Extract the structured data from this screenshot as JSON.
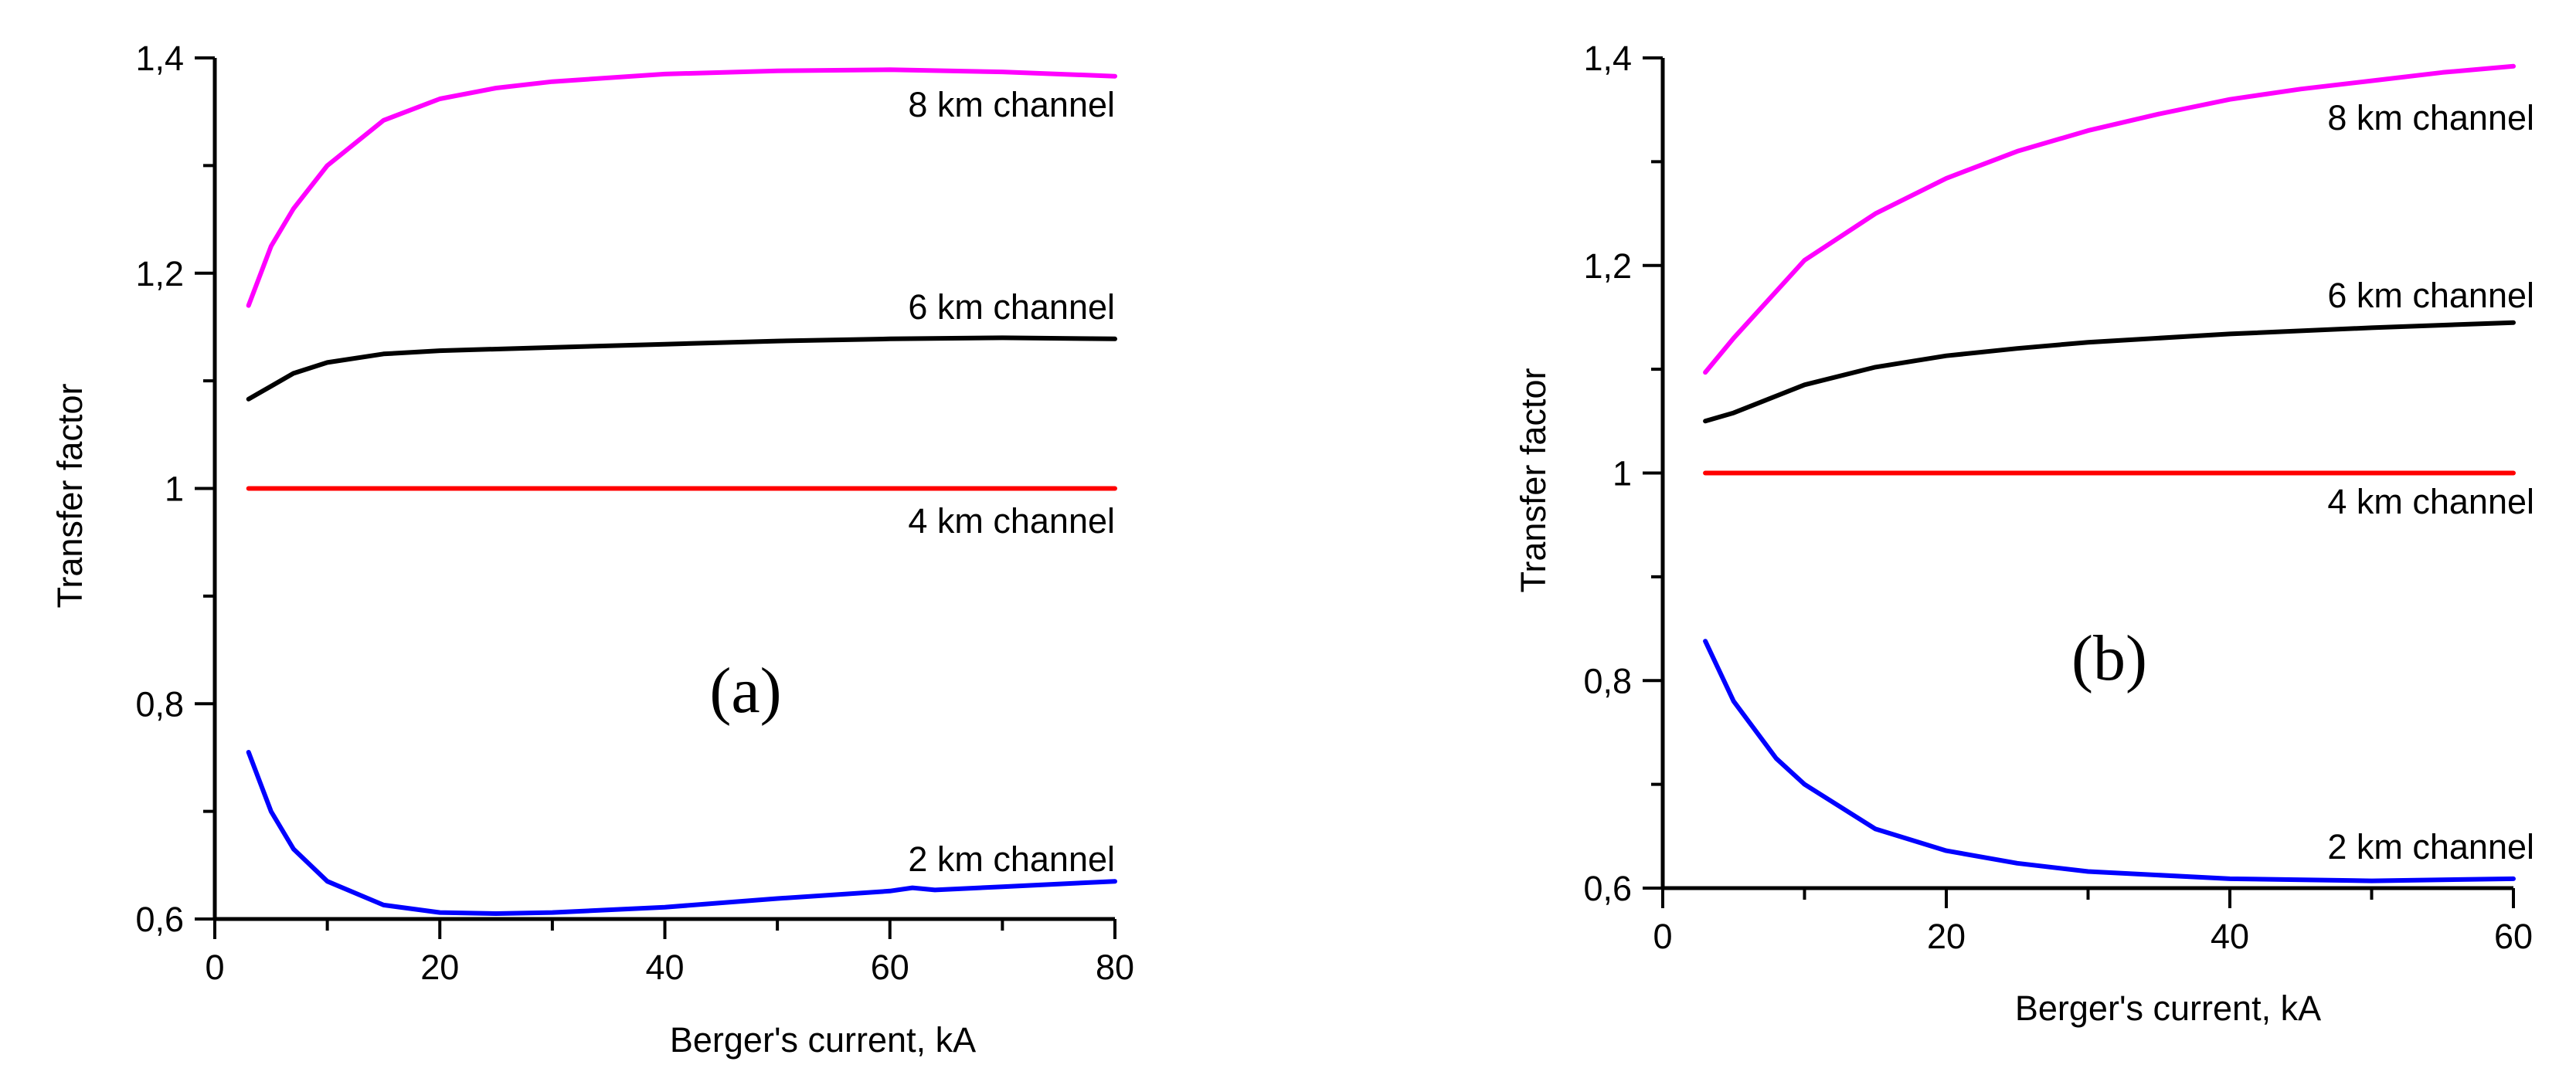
{
  "chart_data": [
    {
      "type": "line",
      "panel_label": "(a)",
      "xlabel": "Berger's current, kA",
      "ylabel": "Transfer factor",
      "xlim": [
        0,
        80
      ],
      "ylim": [
        0.6,
        1.4
      ],
      "x_ticks": [
        0,
        20,
        40,
        60,
        80
      ],
      "x_tick_labels": [
        "0",
        "20",
        "40",
        "60",
        "80"
      ],
      "y_ticks": [
        0.6,
        0.8,
        1.0,
        1.2,
        1.4
      ],
      "y_tick_labels": [
        "0,6",
        "0,8",
        "1",
        "1,2",
        "1,4"
      ],
      "series": [
        {
          "name": "8 km channel",
          "color": "#ff00ff",
          "x": [
            3,
            5,
            7,
            10,
            15,
            20,
            25,
            30,
            40,
            50,
            60,
            70,
            80
          ],
          "values": [
            1.17,
            1.225,
            1.26,
            1.3,
            1.342,
            1.362,
            1.372,
            1.378,
            1.385,
            1.388,
            1.389,
            1.387,
            1.383
          ]
        },
        {
          "name": "6 km channel",
          "color": "#000000",
          "x": [
            3,
            5,
            7,
            10,
            15,
            20,
            30,
            40,
            50,
            60,
            70,
            80
          ],
          "values": [
            1.083,
            1.095,
            1.107,
            1.117,
            1.125,
            1.128,
            1.131,
            1.134,
            1.137,
            1.139,
            1.14,
            1.139
          ]
        },
        {
          "name": "4 km channel",
          "color": "#ff0000",
          "x": [
            3,
            80
          ],
          "values": [
            1.0,
            1.0
          ]
        },
        {
          "name": "2 km channel",
          "color": "#0000ff",
          "x": [
            3,
            5,
            7,
            10,
            15,
            20,
            25,
            30,
            40,
            50,
            60,
            62,
            64,
            70,
            80
          ],
          "values": [
            0.755,
            0.7,
            0.665,
            0.635,
            0.613,
            0.606,
            0.605,
            0.606,
            0.611,
            0.619,
            0.626,
            0.629,
            0.627,
            0.63,
            0.635
          ]
        }
      ]
    },
    {
      "type": "line",
      "panel_label": "(b)",
      "xlabel": "Berger's current, kA",
      "ylabel": "Transfer factor",
      "xlim": [
        0,
        60
      ],
      "ylim": [
        0.6,
        1.4
      ],
      "x_ticks": [
        0,
        20,
        40,
        60
      ],
      "x_tick_labels": [
        "0",
        "20",
        "40",
        "60"
      ],
      "y_ticks": [
        0.6,
        0.8,
        1.0,
        1.2,
        1.4
      ],
      "y_tick_labels": [
        "0,6",
        "0,8",
        "1",
        "1,2",
        "1,4"
      ],
      "series": [
        {
          "name": "8 km channel",
          "color": "#ff00ff",
          "x": [
            3,
            5,
            10,
            15,
            20,
            25,
            30,
            35,
            40,
            45,
            50,
            55,
            60
          ],
          "values": [
            1.097,
            1.13,
            1.205,
            1.25,
            1.284,
            1.31,
            1.33,
            1.346,
            1.36,
            1.37,
            1.378,
            1.386,
            1.392
          ]
        },
        {
          "name": "6 km channel",
          "color": "#000000",
          "x": [
            3,
            5,
            10,
            15,
            20,
            25,
            30,
            40,
            50,
            60
          ],
          "values": [
            1.05,
            1.058,
            1.085,
            1.102,
            1.113,
            1.12,
            1.126,
            1.134,
            1.14,
            1.145
          ]
        },
        {
          "name": "4 km channel",
          "color": "#ff0000",
          "x": [
            3,
            60
          ],
          "values": [
            1.0,
            1.0
          ]
        },
        {
          "name": "2 km channel",
          "color": "#0000ff",
          "x": [
            3,
            5,
            8,
            10,
            15,
            20,
            25,
            30,
            40,
            50,
            60
          ],
          "values": [
            0.838,
            0.78,
            0.725,
            0.7,
            0.657,
            0.636,
            0.624,
            0.616,
            0.609,
            0.607,
            0.609
          ]
        }
      ]
    }
  ]
}
